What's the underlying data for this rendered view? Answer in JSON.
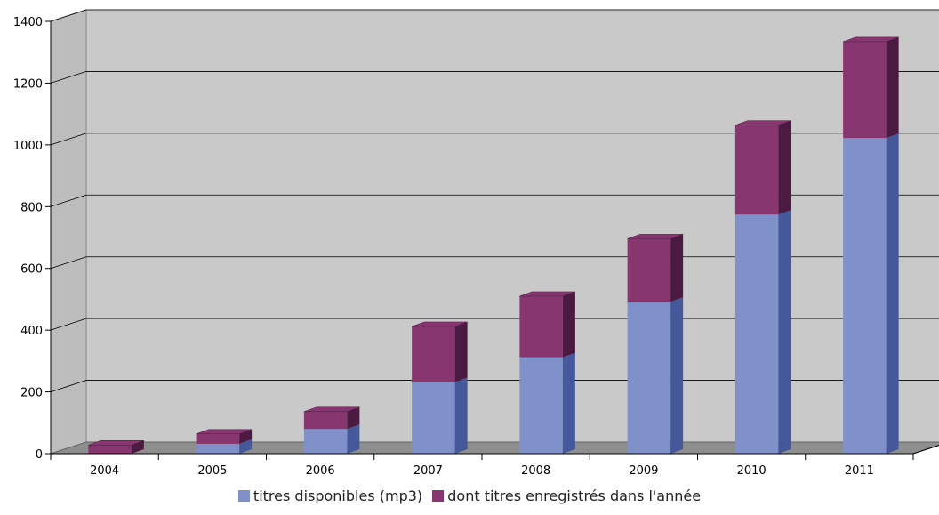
{
  "chart_data": {
    "type": "bar",
    "stacked": true,
    "three_d": true,
    "categories": [
      "2004",
      "2005",
      "2006",
      "2007",
      "2008",
      "2009",
      "2010",
      "2011"
    ],
    "series": [
      {
        "name": "titres disponibles (mp3)",
        "values": [
          0,
          32,
          80,
          232,
          312,
          492,
          774,
          1022
        ],
        "color": "#8090c8",
        "side_color": "#44589a"
      },
      {
        "name": "dont titres enregistrés dans l'année",
        "values": [
          28,
          32,
          56,
          180,
          198,
          204,
          290,
          312
        ],
        "color": "#883670",
        "side_color": "#4a1a40"
      }
    ],
    "ylim": [
      0,
      1400
    ],
    "yticks": [
      0,
      200,
      400,
      600,
      800,
      1000,
      1200,
      1400
    ],
    "grid": true,
    "legend_position": "bottom",
    "title": "",
    "xlabel": "",
    "ylabel": ""
  }
}
